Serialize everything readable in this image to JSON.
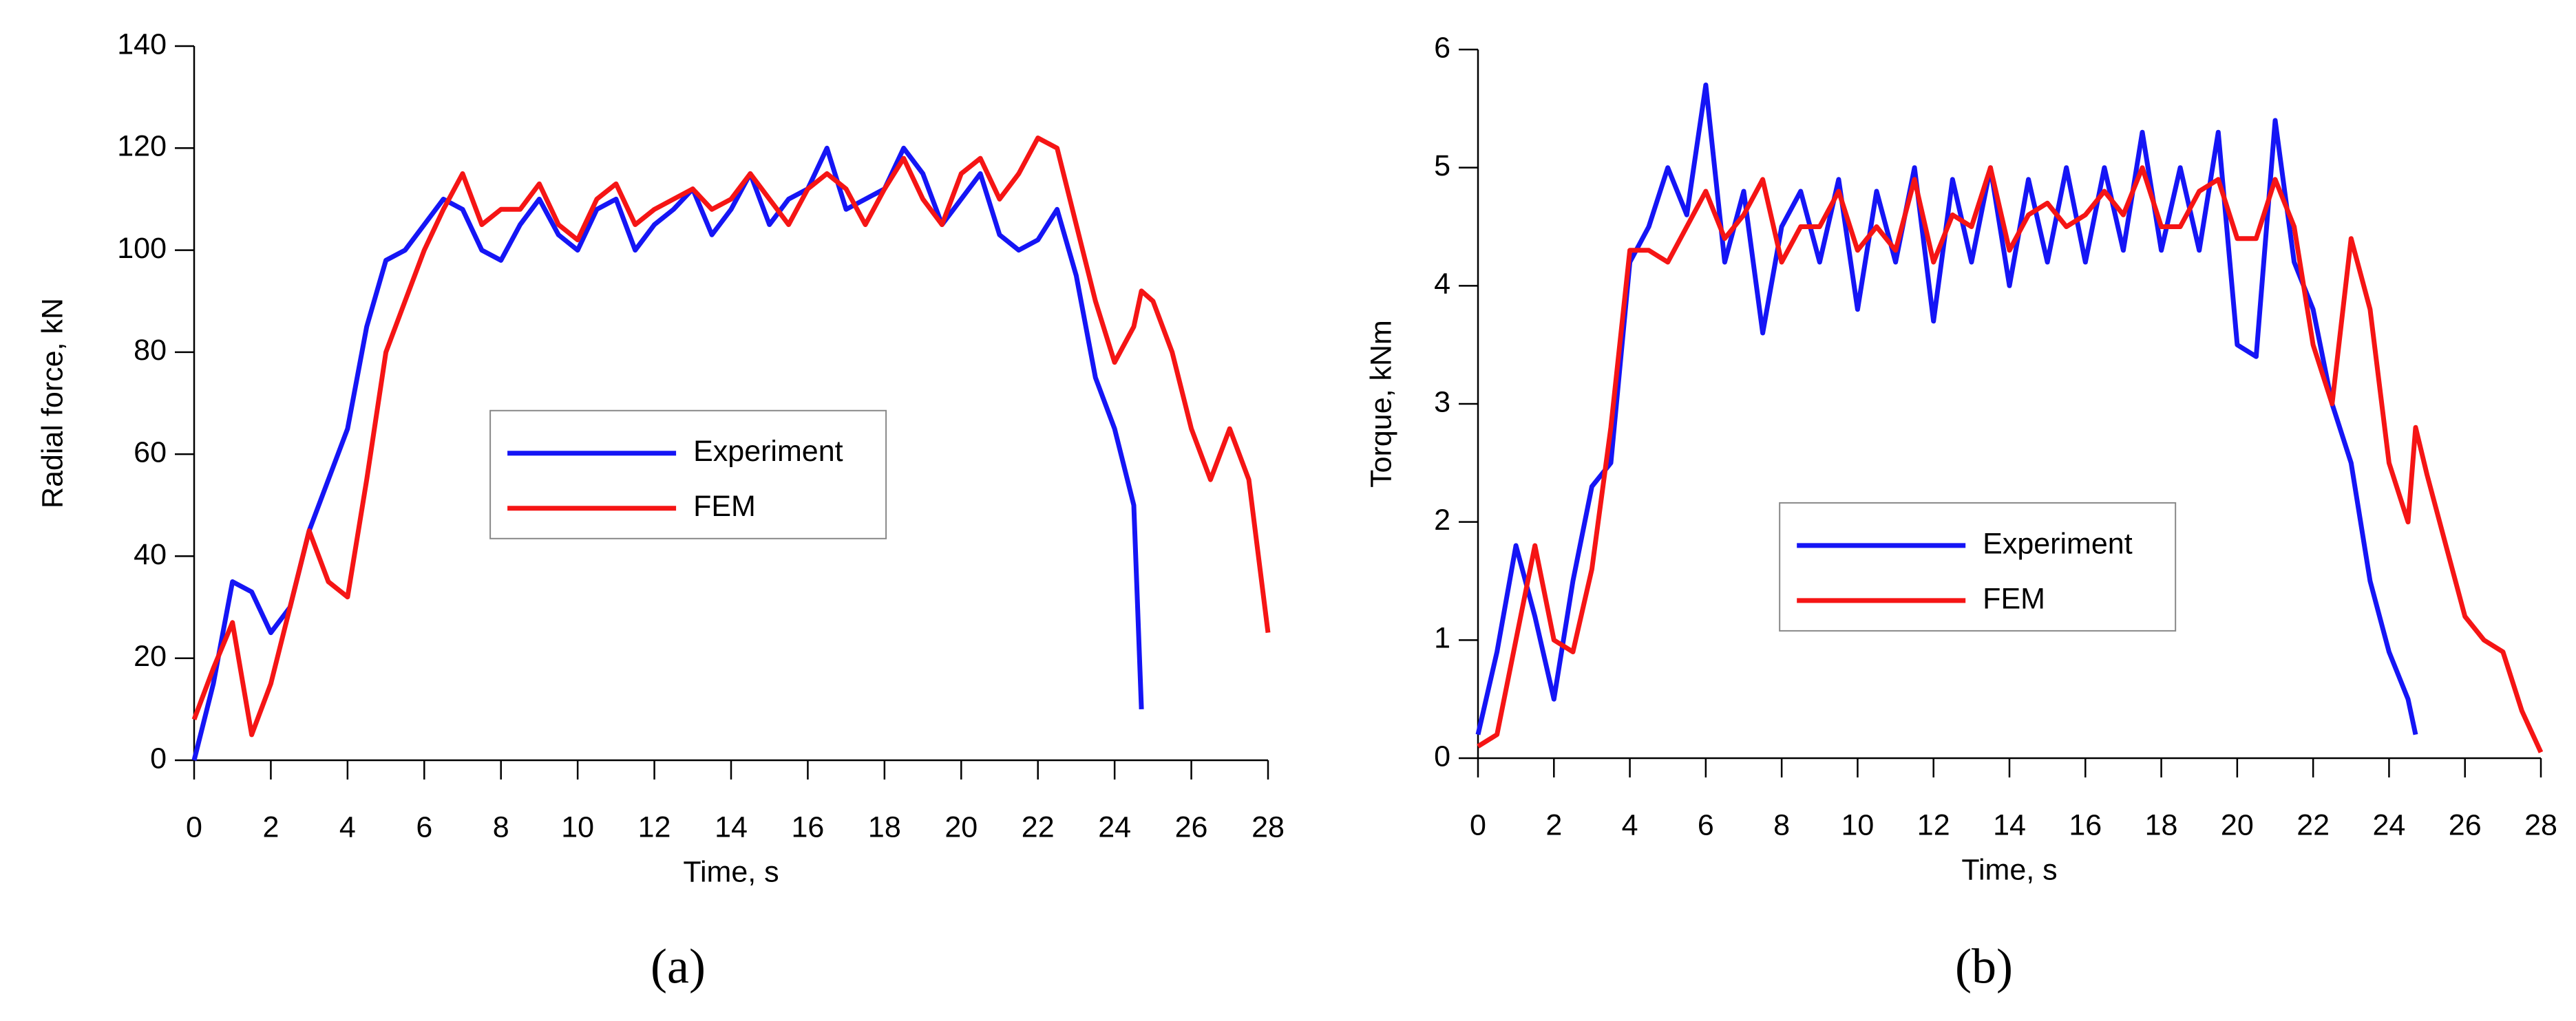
{
  "chart_data": [
    {
      "type": "line",
      "panel_label": "(a)",
      "xlabel": "Time, s",
      "ylabel": "Radial force, kN",
      "x": [
        0,
        0.5,
        1,
        1.5,
        2,
        2.5,
        3,
        3.5,
        4,
        4.5,
        5,
        5.5,
        6,
        6.5,
        7,
        7.5,
        8,
        8.5,
        9,
        9.5,
        10,
        10.5,
        11,
        11.5,
        12,
        12.5,
        13,
        13.5,
        14,
        14.5,
        15,
        15.5,
        16,
        16.5,
        17,
        17.5,
        18,
        18.5,
        19,
        19.5,
        20,
        20.5,
        21,
        21.5,
        22,
        22.5,
        23,
        23.5,
        24,
        24.5,
        24.7,
        25,
        25.5,
        26,
        26.5,
        27,
        27.5,
        28
      ],
      "xlim": [
        0,
        28
      ],
      "xticks": [
        0,
        2,
        4,
        6,
        8,
        10,
        12,
        14,
        16,
        18,
        20,
        22,
        24,
        26,
        28
      ],
      "ylim": [
        0,
        140
      ],
      "yticks": [
        0,
        20,
        40,
        60,
        80,
        100,
        120,
        140
      ],
      "legend": "center",
      "series": [
        {
          "name": "Experiment",
          "color": "#1515f5",
          "values": [
            0,
            15,
            35,
            33,
            25,
            30,
            45,
            55,
            65,
            85,
            98,
            100,
            105,
            110,
            108,
            100,
            98,
            105,
            110,
            103,
            100,
            108,
            110,
            100,
            105,
            108,
            112,
            103,
            108,
            115,
            105,
            110,
            112,
            120,
            108,
            110,
            112,
            120,
            115,
            105,
            110,
            115,
            103,
            100,
            102,
            108,
            95,
            75,
            65,
            50,
            10,
            null,
            null,
            null,
            null,
            null,
            null,
            null
          ]
        },
        {
          "name": "FEM",
          "color": "#f51515",
          "values": [
            8,
            18,
            27,
            5,
            15,
            30,
            45,
            35,
            32,
            55,
            80,
            90,
            100,
            108,
            115,
            105,
            108,
            108,
            113,
            105,
            102,
            110,
            113,
            105,
            108,
            110,
            112,
            108,
            110,
            115,
            110,
            105,
            112,
            115,
            112,
            105,
            112,
            118,
            110,
            105,
            115,
            118,
            110,
            115,
            122,
            120,
            105,
            90,
            78,
            85,
            92,
            90,
            80,
            65,
            55,
            65,
            55,
            25
          ]
        }
      ]
    },
    {
      "type": "line",
      "panel_label": "(b)",
      "xlabel": "Time, s",
      "ylabel": "Torque, kNm",
      "x": [
        0,
        0.5,
        1,
        1.5,
        2,
        2.5,
        3,
        3.5,
        4,
        4.5,
        5,
        5.5,
        6,
        6.5,
        7,
        7.5,
        8,
        8.5,
        9,
        9.5,
        10,
        10.5,
        11,
        11.5,
        12,
        12.5,
        13,
        13.5,
        14,
        14.5,
        15,
        15.5,
        16,
        16.5,
        17,
        17.5,
        18,
        18.5,
        19,
        19.5,
        20,
        20.5,
        21,
        21.5,
        22,
        22.5,
        23,
        23.5,
        24,
        24.5,
        24.7,
        25,
        25.5,
        26,
        26.5,
        27,
        27.5,
        28
      ],
      "xlim": [
        0,
        28
      ],
      "xticks": [
        0,
        2,
        4,
        6,
        8,
        10,
        12,
        14,
        16,
        18,
        20,
        22,
        24,
        26,
        28
      ],
      "ylim": [
        0,
        6
      ],
      "yticks": [
        0,
        1,
        2,
        3,
        4,
        5,
        6
      ],
      "legend": "lower center",
      "series": [
        {
          "name": "Experiment",
          "color": "#1515f5",
          "values": [
            0.2,
            0.9,
            1.8,
            1.2,
            0.5,
            1.5,
            2.3,
            2.5,
            4.2,
            4.5,
            5.0,
            4.6,
            5.7,
            4.2,
            4.8,
            3.6,
            4.5,
            4.8,
            4.2,
            4.9,
            3.8,
            4.8,
            4.2,
            5.0,
            3.7,
            4.9,
            4.2,
            5.0,
            4.0,
            4.9,
            4.2,
            5.0,
            4.2,
            5.0,
            4.3,
            5.3,
            4.3,
            5.0,
            4.3,
            5.3,
            3.5,
            3.4,
            5.4,
            4.2,
            3.8,
            3.0,
            2.5,
            1.5,
            0.9,
            0.5,
            0.2,
            null,
            null,
            null,
            null,
            null,
            null,
            null
          ]
        },
        {
          "name": "FEM",
          "color": "#f51515",
          "values": [
            0.1,
            0.2,
            1.0,
            1.8,
            1.0,
            0.9,
            1.6,
            2.8,
            4.3,
            4.3,
            4.2,
            4.5,
            4.8,
            4.4,
            4.6,
            4.9,
            4.2,
            4.5,
            4.5,
            4.8,
            4.3,
            4.5,
            4.3,
            4.9,
            4.2,
            4.6,
            4.5,
            5.0,
            4.3,
            4.6,
            4.7,
            4.5,
            4.6,
            4.8,
            4.6,
            5.0,
            4.5,
            4.5,
            4.8,
            4.9,
            4.4,
            4.4,
            4.9,
            4.5,
            3.5,
            3.0,
            4.4,
            3.8,
            2.5,
            2.0,
            2.8,
            2.4,
            1.8,
            1.2,
            1.0,
            0.9,
            0.4,
            0.05
          ]
        }
      ]
    }
  ]
}
